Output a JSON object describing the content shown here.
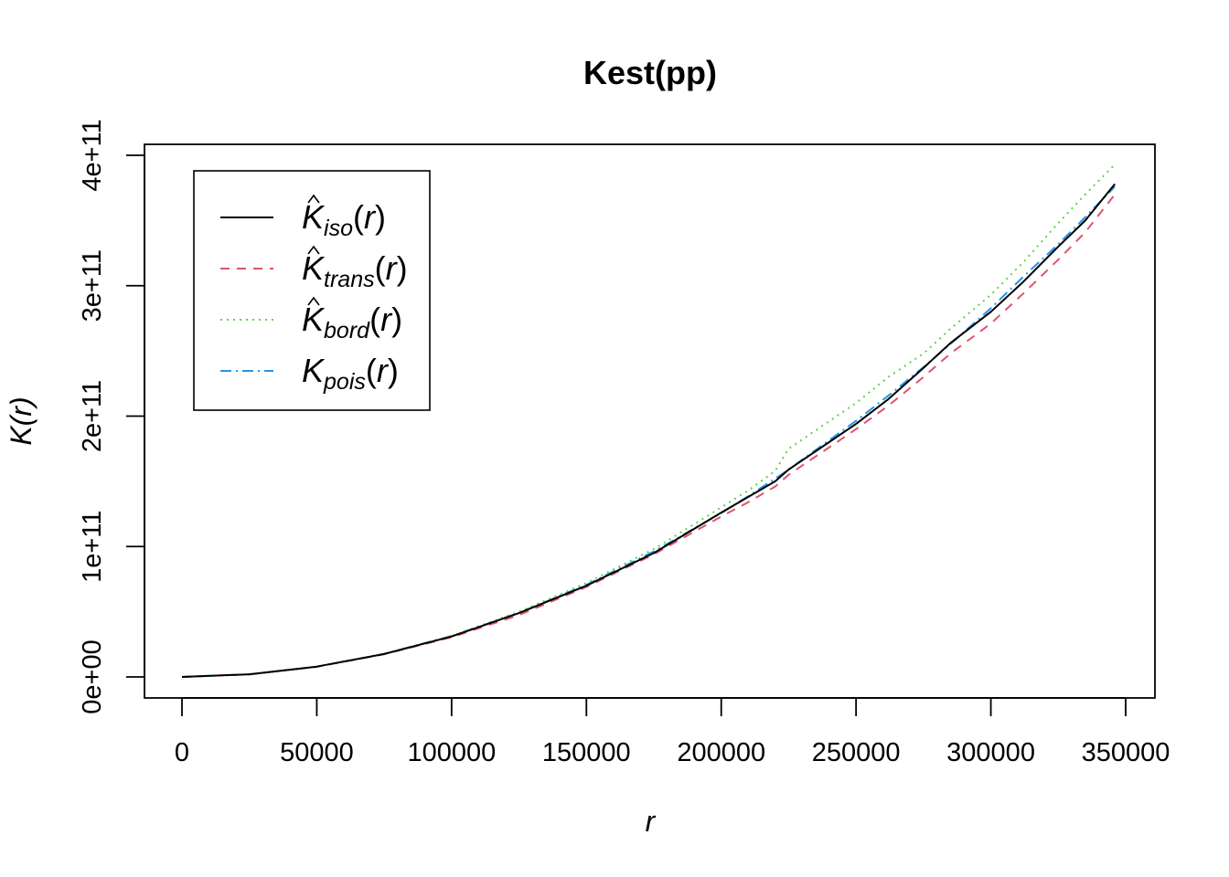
{
  "chart_data": {
    "type": "line",
    "title": "Kest(pp)",
    "xlabel": "r",
    "ylabel": "K(r)",
    "xlim": [
      0,
      350000
    ],
    "ylim": [
      0,
      400000000000
    ],
    "x_ticks": [
      {
        "value": 0,
        "label": "0"
      },
      {
        "value": 50000,
        "label": "50000"
      },
      {
        "value": 100000,
        "label": "100000"
      },
      {
        "value": 150000,
        "label": "150000"
      },
      {
        "value": 200000,
        "label": "200000"
      },
      {
        "value": 250000,
        "label": "250000"
      },
      {
        "value": 300000,
        "label": "300000"
      },
      {
        "value": 350000,
        "label": "350000"
      }
    ],
    "y_ticks": [
      {
        "value": 0,
        "label": "0e+00"
      },
      {
        "value": 100000000000,
        "label": "1e+11"
      },
      {
        "value": 200000000000,
        "label": "2e+11"
      },
      {
        "value": 300000000000,
        "label": "3e+11"
      },
      {
        "value": 400000000000,
        "label": "4e+11"
      }
    ],
    "grid": false,
    "legend_position": "top-left",
    "x": [
      0,
      25000,
      50000,
      75000,
      100000,
      125000,
      150000,
      175000,
      200000,
      210000,
      220000,
      225000,
      250000,
      262000,
      275000,
      285000,
      300000,
      312000,
      325000,
      335000,
      346000
    ],
    "series": [
      {
        "key": "iso",
        "name": "K",
        "hat": true,
        "subscript": "iso",
        "color": "#000000",
        "dash": "",
        "values": [
          0,
          2000000000,
          7900000000,
          17600000000,
          31000000000,
          49000000000,
          70000000000,
          95000000000,
          126000000000,
          138000000000,
          150000000000,
          159000000000,
          194000000000,
          213000000000,
          237000000000,
          256000000000,
          280000000000,
          303000000000,
          330000000000,
          350000000000,
          378000000000
        ]
      },
      {
        "key": "trans",
        "name": "K",
        "hat": true,
        "subscript": "trans",
        "color": "#DF536B",
        "dash": "10,8",
        "values": [
          0,
          2000000000,
          7800000000,
          17400000000,
          30500000000,
          47500000000,
          69000000000,
          94000000000,
          123000000000,
          134000000000,
          146000000000,
          155000000000,
          190000000000,
          208000000000,
          230000000000,
          248000000000,
          271000000000,
          294000000000,
          320000000000,
          341000000000,
          370000000000
        ]
      },
      {
        "key": "bord",
        "name": "K",
        "hat": true,
        "subscript": "bord",
        "color": "#61D04F",
        "dash": "2,5",
        "values": [
          0,
          2000000000,
          7900000000,
          17700000000,
          31500000000,
          50000000000,
          72000000000,
          98000000000,
          130000000000,
          143000000000,
          158000000000,
          175000000000,
          210000000000,
          230000000000,
          248000000000,
          267000000000,
          293000000000,
          318000000000,
          348000000000,
          370000000000,
          393000000000
        ]
      },
      {
        "key": "pois",
        "name": "K",
        "hat": false,
        "subscript": "pois",
        "color": "#2297E6",
        "dash": "12,5,2,5",
        "values": [
          0,
          1963500000,
          7854000000,
          17671000000,
          31416000000,
          49087000000,
          70686000000,
          96211000000,
          125664000000,
          138544000000,
          152053000000,
          159043000000,
          196350000000,
          215670000000,
          237583000000,
          255176000000,
          282743000000,
          306796000000,
          331831000000,
          352566000000,
          376062000000
        ]
      }
    ]
  }
}
